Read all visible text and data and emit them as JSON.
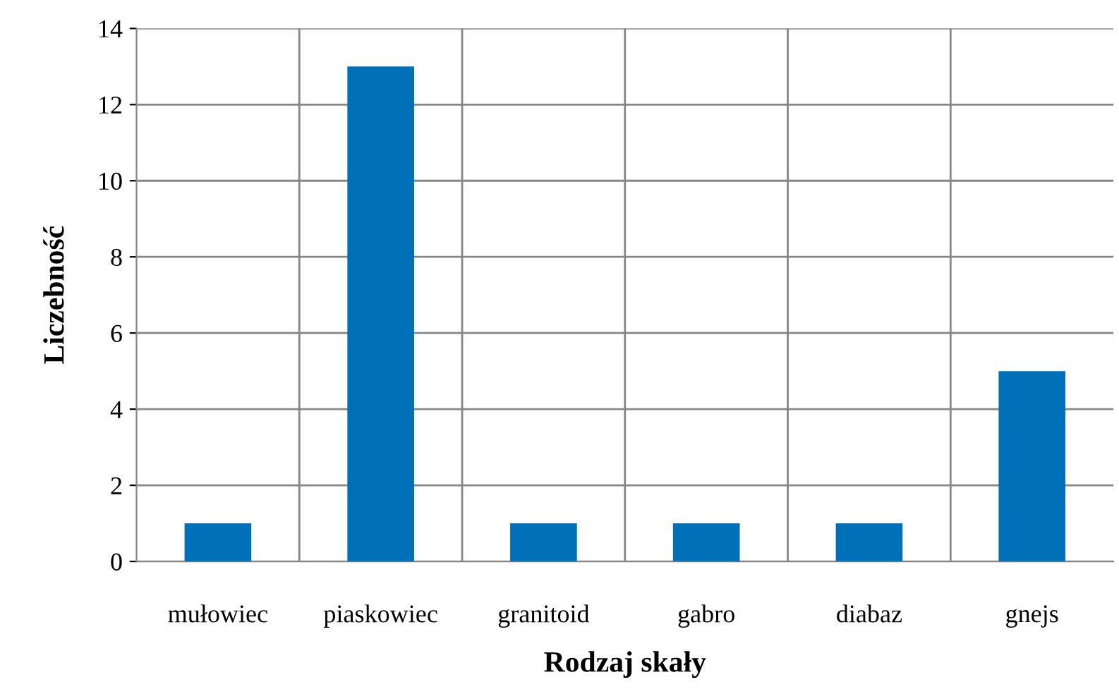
{
  "chart_data": {
    "type": "bar",
    "xlabel": "Rodzaj skały",
    "ylabel": "Liczebność",
    "categories": [
      "mułowiec",
      "piaskowiec",
      "granitoid",
      "gabro",
      "diabaz",
      "gnejs"
    ],
    "values": [
      1,
      13,
      1,
      1,
      1,
      5
    ],
    "color": "#0070b8",
    "ylim": [
      0,
      14
    ],
    "yticks": [
      0,
      2,
      4,
      6,
      8,
      10,
      12,
      14
    ],
    "grid": true,
    "legend": false
  }
}
